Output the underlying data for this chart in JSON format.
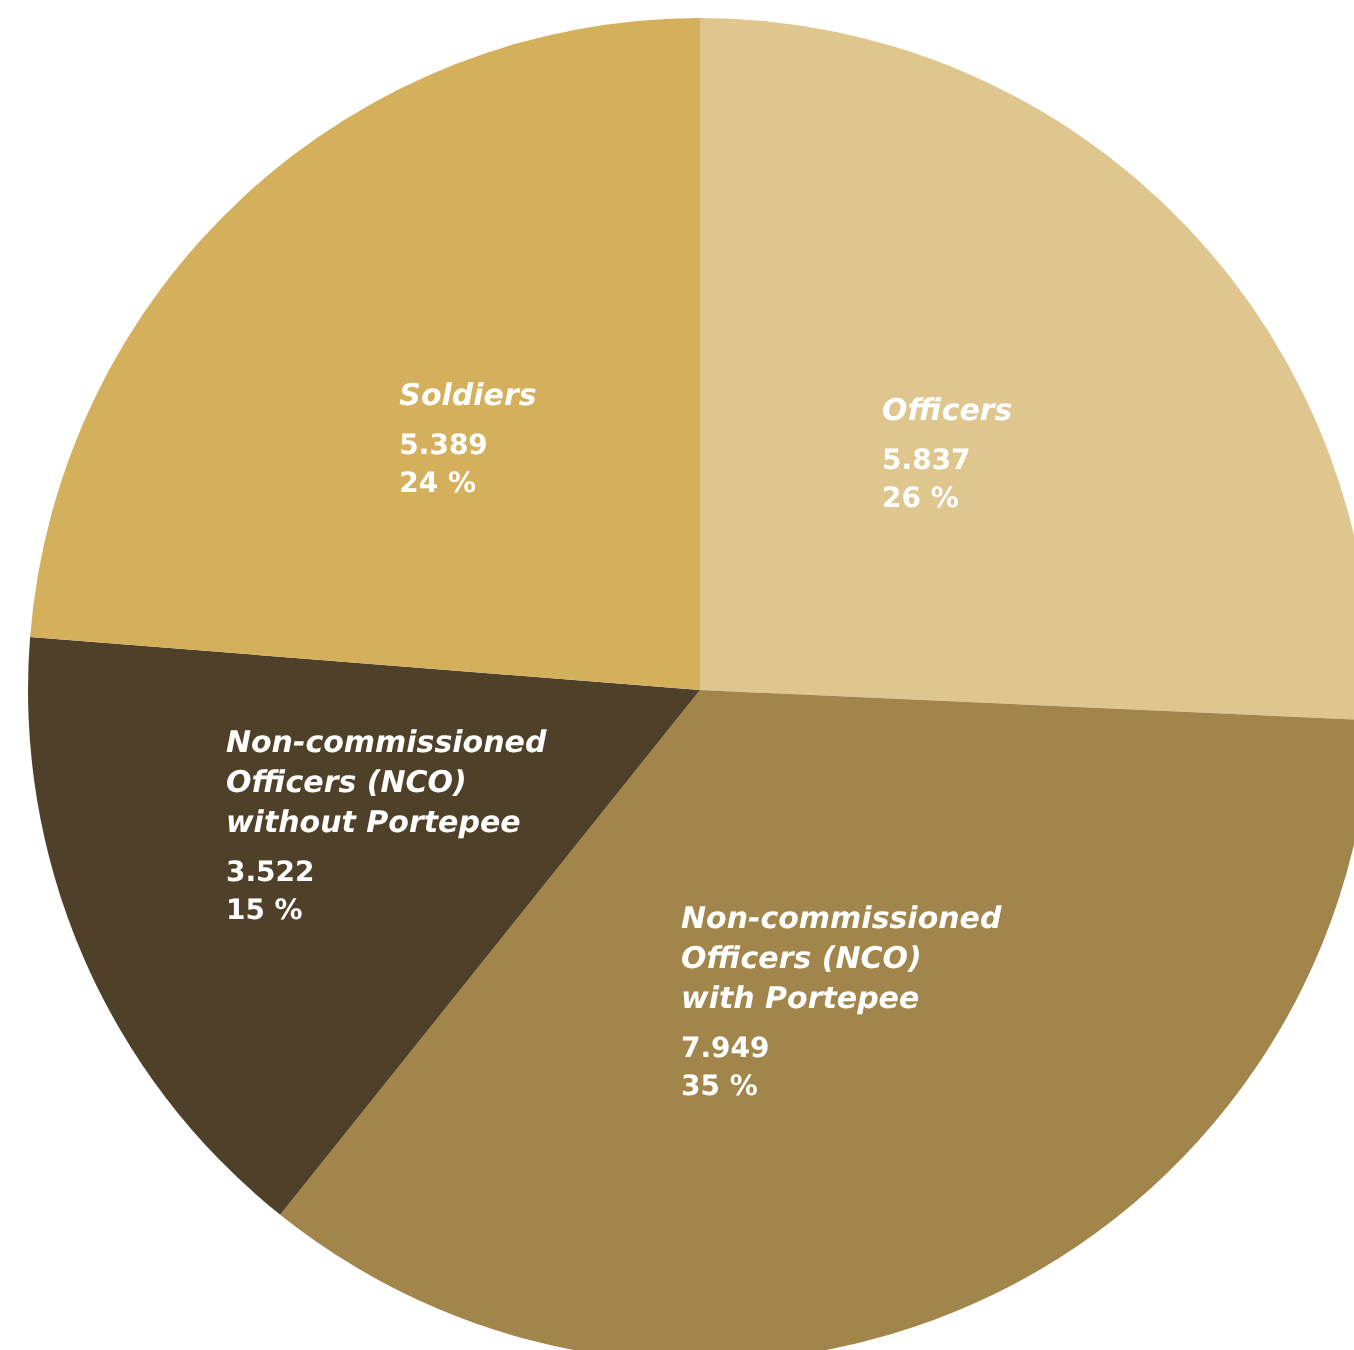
{
  "chart_data": {
    "type": "pie",
    "categories": [
      "Officers",
      "Non-commissioned Officers (NCO) with Portepee",
      "Non-commissioned Officers (NCO) without Portepee",
      "Soldiers"
    ],
    "values": [
      5837,
      7949,
      3522,
      5389
    ],
    "value_labels": [
      "5.837\n26 %",
      "7.949\n35 %",
      "3.522\n15 %",
      "5.389\n24 %"
    ],
    "colors": [
      "#dfc68e",
      "#a1854a",
      "#4f4129",
      "#d4b05c"
    ],
    "legend": false
  }
}
